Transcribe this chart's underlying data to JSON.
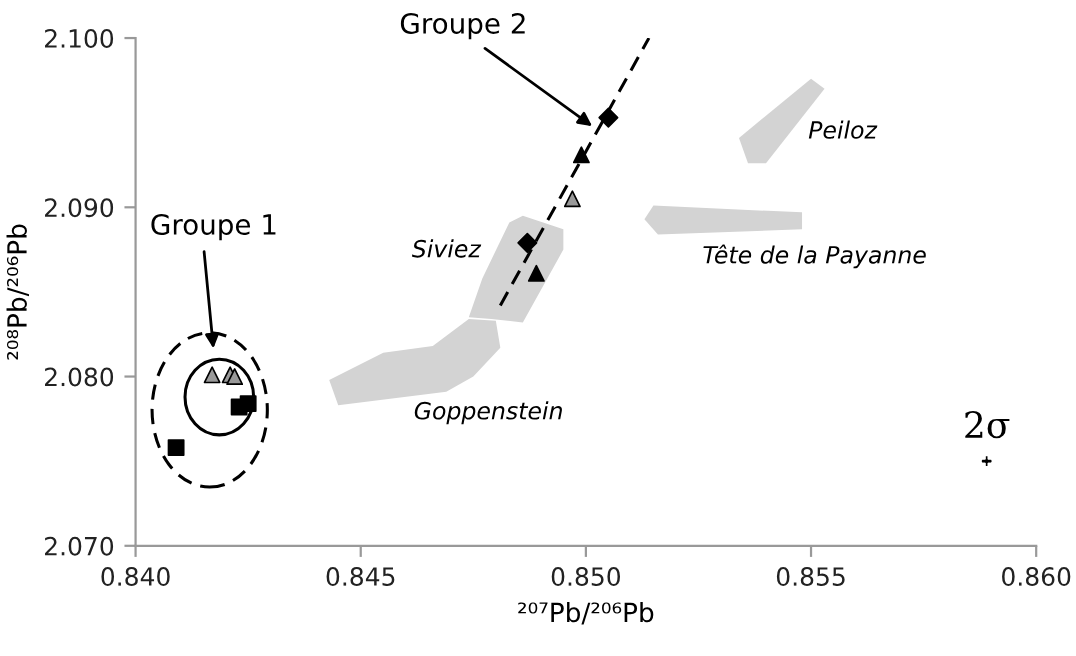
{
  "chart_data": {
    "type": "scatter",
    "xlabel": "²⁰⁷Pb/²⁰⁶Pb",
    "ylabel": "²⁰⁸Pb/²⁰⁶Pb",
    "xlim": [
      0.84,
      0.86
    ],
    "ylim": [
      2.07,
      2.1
    ],
    "xticks": [
      {
        "value": 0.84,
        "label": "0.840"
      },
      {
        "value": 0.845,
        "label": "0.845"
      },
      {
        "value": 0.85,
        "label": "0.850"
      },
      {
        "value": 0.855,
        "label": "0.855"
      },
      {
        "value": 0.86,
        "label": "0.860"
      }
    ],
    "yticks": [
      {
        "value": 2.07,
        "label": "2.070"
      },
      {
        "value": 2.08,
        "label": "2.080"
      },
      {
        "value": 2.09,
        "label": "2.090"
      },
      {
        "value": 2.1,
        "label": "2.100"
      }
    ],
    "grid": false,
    "series": [
      {
        "type": "area",
        "color": "#d3d3d3",
        "x": [
          0.8443,
          0.8455,
          0.8466,
          0.8474,
          0.848,
          0.8481,
          0.8475,
          0.8469,
          0.8445
        ],
        "values": [
          2.0798,
          2.0814,
          2.0818,
          2.0834,
          2.0833,
          2.0817,
          2.08,
          2.0791,
          2.0783
        ]
      },
      {
        "type": "area",
        "color": "#d3d3d3",
        "x": [
          0.8483,
          0.8486,
          0.8495,
          0.8495,
          0.8486,
          0.8479,
          0.8474,
          0.8477
        ],
        "values": [
          2.0891,
          2.0895,
          2.0887,
          2.0875,
          2.0832,
          2.0834,
          2.0835,
          2.0858
        ]
      },
      {
        "type": "area",
        "color": "#d3d3d3",
        "x": [
          0.8534,
          0.855,
          0.8553,
          0.854,
          0.8536
        ],
        "values": [
          2.0941,
          2.0976,
          2.097,
          2.0926,
          2.0926
        ]
      },
      {
        "type": "area",
        "color": "#d3d3d3",
        "x": [
          0.8513,
          0.8515,
          0.8548,
          0.8548,
          0.8516
        ],
        "values": [
          2.0893,
          2.0901,
          2.0897,
          2.0887,
          2.0884
        ]
      },
      {
        "type": "line",
        "color": "#000000",
        "line_style": "dashed",
        "x": [
          0.8481,
          0.8514
        ],
        "values": [
          2.0842,
          2.1
        ]
      },
      {
        "color": "#999999",
        "marker": "triangle",
        "x": [
          0.8417,
          0.8421,
          0.8422,
          0.8497
        ],
        "values": [
          2.0801,
          2.0801,
          2.08,
          2.0905
        ]
      },
      {
        "color": "#000000",
        "marker": "square",
        "x": [
          0.8423,
          0.8425,
          0.8409
        ],
        "values": [
          2.0782,
          2.0784,
          2.0758
        ]
      },
      {
        "color": "#000000",
        "marker": "triangle",
        "x": [
          0.8489,
          0.8499
        ],
        "values": [
          2.0861,
          2.0931
        ]
      },
      {
        "color": "#000000",
        "marker": "diamond",
        "x": [
          0.8487,
          0.8505
        ],
        "values": [
          2.0879,
          2.0953
        ]
      },
      {
        "color": "#000000",
        "marker": "cross",
        "x": [
          0.8589
        ],
        "values": [
          2.075
        ],
        "errors": [
          0.0001
        ],
        "xerrors": [
          0.0001
        ]
      }
    ],
    "annotations": [
      "Groupe 1",
      "Groupe 2",
      "Siviez",
      "Goppenstein",
      "Peiloz",
      "Tête de la Payanne",
      {
        "text": "2σ",
        "x": 0.8589,
        "y": 2.075
      }
    ]
  }
}
